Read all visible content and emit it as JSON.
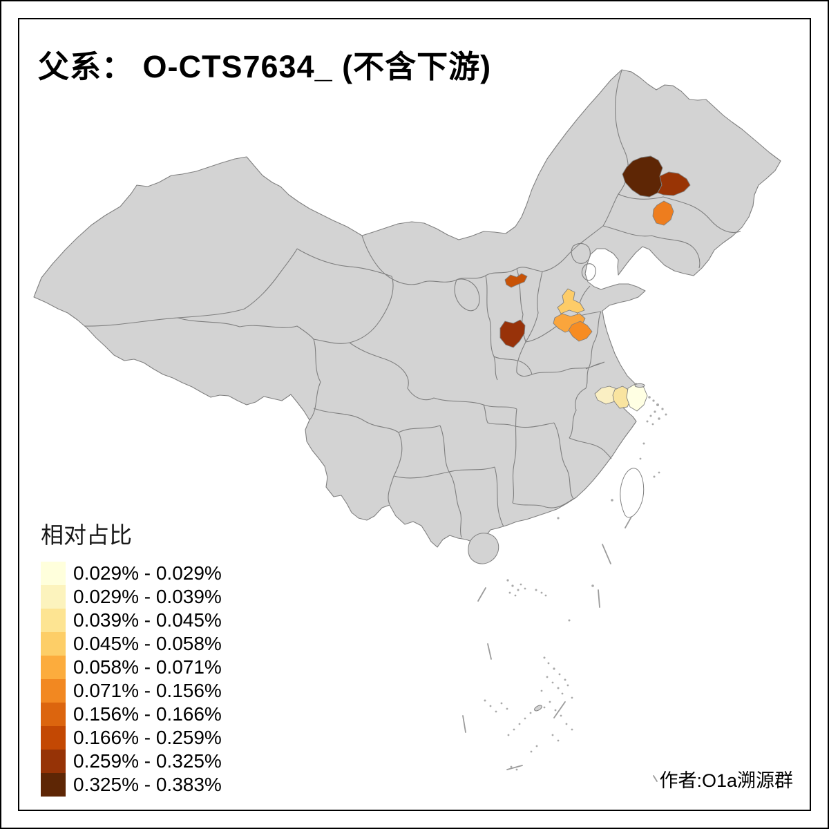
{
  "title": "父系： O-CTS7634_ (不含下游)",
  "attribution": "作者:O1a溯源群",
  "legend": {
    "title": "相对占比",
    "classes": [
      {
        "range": "0.029% - 0.029%",
        "color": "#FFFFDC"
      },
      {
        "range": "0.029% - 0.039%",
        "color": "#FCF3BD"
      },
      {
        "range": "0.039% - 0.045%",
        "color": "#FDE492"
      },
      {
        "range": "0.045% - 0.058%",
        "color": "#FDCE67"
      },
      {
        "range": "0.058% - 0.071%",
        "color": "#FCAC3D"
      },
      {
        "range": "0.071% - 0.156%",
        "color": "#F28821"
      },
      {
        "range": "0.156% - 0.166%",
        "color": "#DC650E"
      },
      {
        "range": "0.166% - 0.259%",
        "color": "#C34803"
      },
      {
        "range": "0.259% - 0.325%",
        "color": "#963306"
      },
      {
        "range": "0.325% - 0.383%",
        "color": "#5E2605"
      }
    ]
  },
  "map": {
    "base_fill": "#D3D3D3",
    "border_color": "#7F7F7F",
    "background": "#FFFFFF",
    "regions": [
      {
        "id": "northeast-darkest",
        "color": "#5E2605",
        "legend_class": "0.325% - 0.383%"
      },
      {
        "id": "northeast-dark-brown",
        "color": "#993405",
        "legend_class": "0.259% - 0.325%"
      },
      {
        "id": "northeast-orange",
        "color": "#EE7D1E",
        "legend_class": "0.071% - 0.156%"
      },
      {
        "id": "north-small-dark-orange",
        "color": "#C85307",
        "legend_class": "0.166% - 0.259%"
      },
      {
        "id": "central-dark-brown",
        "color": "#983209",
        "legend_class": "0.259% - 0.325%"
      },
      {
        "id": "central-light-amber",
        "color": "#FDCC68",
        "legend_class": "0.045% - 0.058%"
      },
      {
        "id": "central-orange",
        "color": "#FAA53C",
        "legend_class": "0.058% - 0.071%"
      },
      {
        "id": "central-deep-orange",
        "color": "#F78C22",
        "legend_class": "0.071% - 0.156%"
      },
      {
        "id": "east-pale-yellow",
        "color": "#FAEFC3",
        "legend_class": "0.029% - 0.039%"
      },
      {
        "id": "east-light-yellow",
        "color": "#F9E4A0",
        "legend_class": "0.039% - 0.045%"
      },
      {
        "id": "east-palest-yellow",
        "color": "#FFFFE3",
        "legend_class": "0.029% - 0.029%"
      }
    ]
  }
}
